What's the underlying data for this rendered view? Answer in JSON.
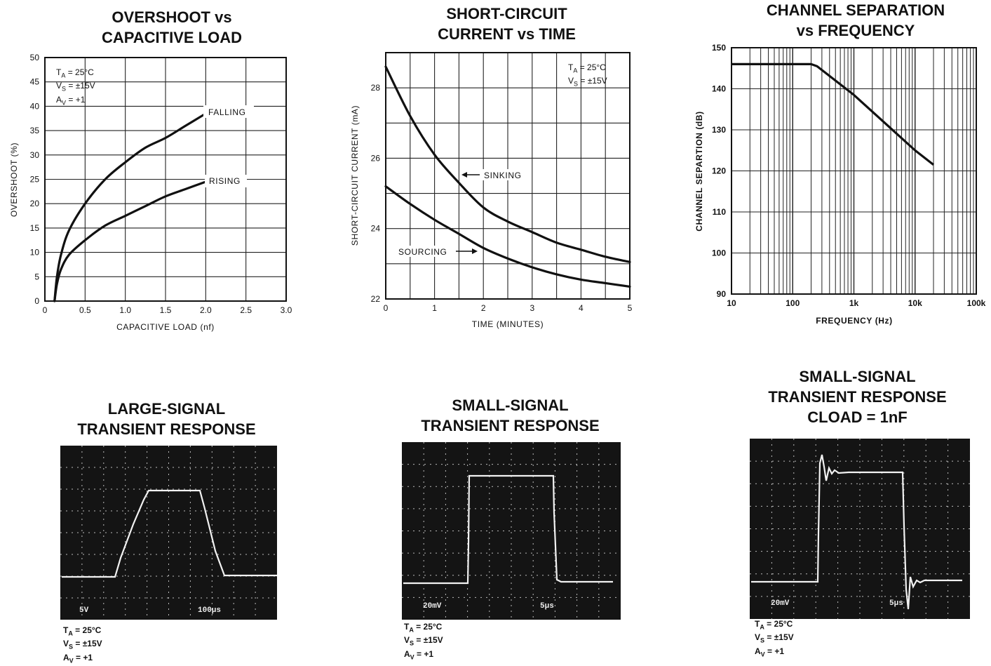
{
  "charts": {
    "overshoot": {
      "title": "OVERSHOOT vs\nCAPACITIVE LOAD",
      "conditions": [
        "TA = 25°C",
        "VS = ±15V",
        "AV = +1"
      ],
      "label_falling": "FALLING",
      "label_rising": "RISING"
    },
    "short_circuit": {
      "title": "SHORT-CIRCUIT\nCURRENT vs TIME",
      "conditions": [
        "TA = 25°C",
        "VS = ±15V"
      ],
      "label_sinking": "SINKING",
      "label_sourcing": "SOURCING"
    },
    "channel_sep": {
      "title": "CHANNEL SEPARATION\nvs FREQUENCY"
    },
    "large_signal": {
      "title": "LARGE-SIGNAL\nTRANSIENT RESPONSE",
      "scale_v": "5V",
      "scale_t": "100μs",
      "conditions": [
        "TA = 25°C",
        "VS = ±15V",
        "AV = +1"
      ]
    },
    "small_signal": {
      "title": "SMALL-SIGNAL\nTRANSIENT RESPONSE",
      "scale_v": "20mV",
      "scale_t": "5μs",
      "conditions": [
        "TA = 25°C",
        "VS = ±15V",
        "AV = +1"
      ]
    },
    "small_signal_cload": {
      "title": "SMALL-SIGNAL\nTRANSIENT RESPONSE\nCLOAD = 1nF",
      "scale_v": "20mV",
      "scale_t": "5μs",
      "conditions": [
        "TA = 25°C",
        "VS = ±15V",
        "AV = +1"
      ]
    }
  },
  "chart_data": [
    {
      "id": "overshoot",
      "type": "line",
      "title": "OVERSHOOT vs CAPACITIVE LOAD",
      "xlabel": "CAPACITIVE LOAD (nf)",
      "ylabel": "OVERSHOOT (%)",
      "xlim": [
        0,
        3.0
      ],
      "ylim": [
        0,
        50
      ],
      "x_ticks": [
        "0",
        "0.5",
        "1.0",
        "1.5",
        "2.0",
        "2.5",
        "3.0"
      ],
      "y_ticks": [
        "0",
        "5",
        "10",
        "15",
        "20",
        "25",
        "30",
        "35",
        "40",
        "45",
        "50"
      ],
      "grid": true,
      "series": [
        {
          "name": "FALLING",
          "x": [
            0.12,
            0.15,
            0.2,
            0.3,
            0.5,
            0.75,
            1.0,
            1.25,
            1.5,
            1.75,
            2.0
          ],
          "y": [
            0,
            5,
            9.5,
            14.5,
            20,
            25,
            28.5,
            31.5,
            33.5,
            36,
            38.5
          ]
        },
        {
          "name": "RISING",
          "x": [
            0.12,
            0.15,
            0.2,
            0.3,
            0.5,
            0.75,
            1.0,
            1.25,
            1.5,
            1.75,
            2.0
          ],
          "y": [
            0,
            3.5,
            6.5,
            9.5,
            12.5,
            15.5,
            17.5,
            19.5,
            21.5,
            23,
            24.5
          ]
        }
      ]
    },
    {
      "id": "short_circuit",
      "type": "line",
      "title": "SHORT-CIRCUIT CURRENT vs TIME",
      "xlabel": "TIME (MINUTES)",
      "ylabel": "SHORT-CIRCUIT CURRENT (mA)",
      "xlim": [
        0,
        5
      ],
      "ylim": [
        22,
        29
      ],
      "x_ticks": [
        "0",
        "1",
        "2",
        "3",
        "4",
        "5"
      ],
      "y_ticks": [
        "22",
        "24",
        "26",
        "28"
      ],
      "grid": true,
      "series": [
        {
          "name": "SINKING",
          "x": [
            0,
            0.5,
            1,
            1.5,
            2,
            2.5,
            3,
            3.5,
            4,
            4.5,
            5
          ],
          "y": [
            28.6,
            27.2,
            26.1,
            25.3,
            24.6,
            24.2,
            23.9,
            23.6,
            23.4,
            23.2,
            23.05
          ]
        },
        {
          "name": "SOURCING",
          "x": [
            0,
            0.5,
            1,
            1.5,
            2,
            2.5,
            3,
            3.5,
            4,
            4.5,
            5
          ],
          "y": [
            25.2,
            24.7,
            24.25,
            23.85,
            23.45,
            23.15,
            22.9,
            22.7,
            22.55,
            22.45,
            22.35
          ]
        }
      ]
    },
    {
      "id": "channel_sep",
      "type": "line",
      "title": "CHANNEL SEPARATION vs FREQUENCY",
      "xlabel": "FREQUENCY (Hz)",
      "ylabel": "CHANNEL SEPARTION (dB)",
      "x_scale": "log",
      "xlim": [
        10,
        100000
      ],
      "ylim": [
        90,
        150
      ],
      "x_ticks": [
        "10",
        "100",
        "1k",
        "10k",
        "100k"
      ],
      "y_ticks": [
        "90",
        "100",
        "110",
        "120",
        "130",
        "140",
        "150"
      ],
      "grid": true,
      "series": [
        {
          "x": [
            10,
            100,
            200,
            250,
            1000,
            10000,
            20000
          ],
          "y": [
            146,
            146,
            146,
            145.5,
            138.5,
            125,
            121.5
          ]
        }
      ]
    }
  ]
}
